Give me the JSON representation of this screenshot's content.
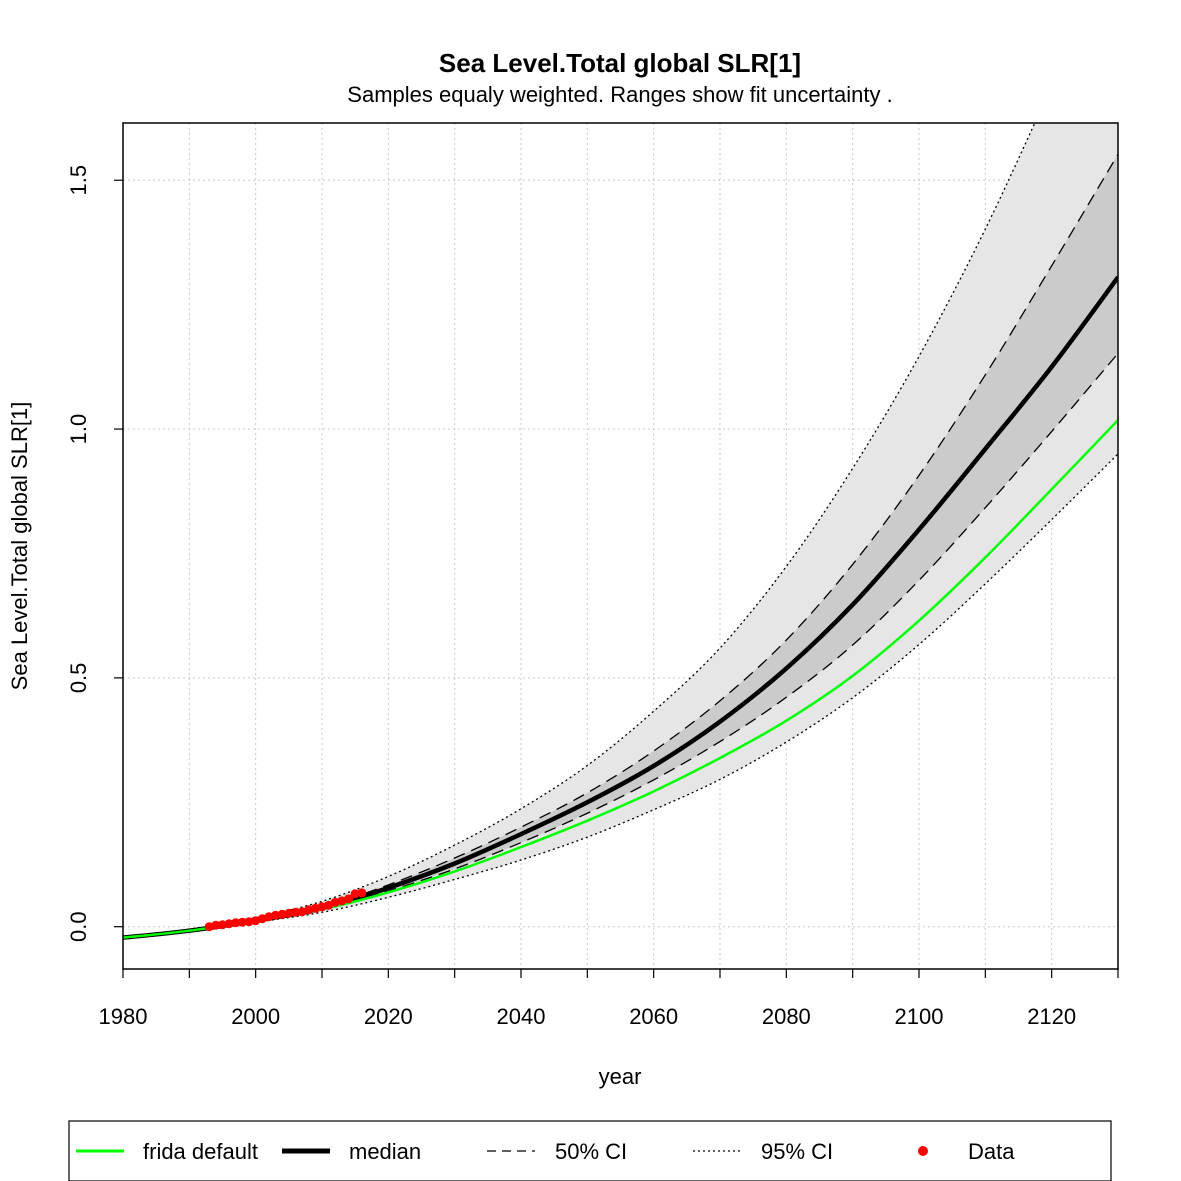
{
  "chart_data": {
    "type": "line",
    "title": "Sea Level.Total global SLR[1]",
    "subtitle": "Samples equaly weighted. Ranges show  fit uncertainty .",
    "xlabel": "year",
    "ylabel": "Sea Level.Total global SLR[1]",
    "xlim": [
      1980,
      2130
    ],
    "ylim": [
      -0.085,
      1.615
    ],
    "x_ticks": [
      1980,
      2000,
      2020,
      2040,
      2060,
      2080,
      2100,
      2120
    ],
    "x_minor_ticks": [
      1990,
      2010,
      2030,
      2050,
      2070,
      2090,
      2110,
      2130
    ],
    "y_ticks": [
      0.0,
      0.5,
      1.0,
      1.5
    ],
    "x_tick_labels": [
      "1980",
      "2000",
      "2020",
      "2040",
      "2060",
      "2080",
      "2100",
      "2120"
    ],
    "y_tick_labels": [
      "0.0",
      "0.5",
      "1.0",
      "1.5"
    ],
    "grid": true,
    "x": [
      1980,
      1990,
      2000,
      2010,
      2020,
      2030,
      2040,
      2050,
      2060,
      2070,
      2080,
      2090,
      2100,
      2110,
      2120,
      2130
    ],
    "series": [
      {
        "name": "frida default",
        "style": "line",
        "color": "#00ff00",
        "values": [
          -0.022,
          -0.008,
          0.012,
          0.035,
          0.069,
          0.111,
          0.16,
          0.213,
          0.272,
          0.339,
          0.414,
          0.504,
          0.615,
          0.742,
          0.879,
          1.018
        ]
      },
      {
        "name": "median",
        "style": "line",
        "color": "#000000",
        "values": [
          -0.022,
          -0.008,
          0.012,
          0.037,
          0.078,
          0.127,
          0.186,
          0.25,
          0.323,
          0.412,
          0.519,
          0.647,
          0.798,
          0.96,
          1.125,
          1.305
        ]
      },
      {
        "name": "50% CI",
        "style": "dashed",
        "color": "#000000",
        "lower": [
          -0.022,
          -0.008,
          0.012,
          0.035,
          0.072,
          0.116,
          0.169,
          0.228,
          0.295,
          0.372,
          0.461,
          0.566,
          0.696,
          0.842,
          0.995,
          1.152
        ],
        "upper": [
          -0.022,
          -0.007,
          0.013,
          0.04,
          0.084,
          0.138,
          0.2,
          0.269,
          0.353,
          0.454,
          0.576,
          0.728,
          0.907,
          1.109,
          1.328,
          1.552
        ]
      },
      {
        "name": "95% CI",
        "style": "dotted",
        "color": "#000000",
        "lower": [
          -0.022,
          -0.009,
          0.009,
          0.029,
          0.059,
          0.095,
          0.134,
          0.18,
          0.235,
          0.296,
          0.371,
          0.46,
          0.567,
          0.689,
          0.818,
          0.95
        ],
        "upper": [
          -0.02,
          -0.005,
          0.018,
          0.051,
          0.101,
          0.164,
          0.237,
          0.324,
          0.433,
          0.56,
          0.724,
          0.921,
          1.146,
          1.402,
          1.69,
          1.99
        ]
      },
      {
        "name": "Data",
        "style": "points",
        "color": "#ff0000",
        "x": [
          1993,
          1994,
          1995,
          1996,
          1997,
          1998,
          1999,
          2000,
          2001,
          2002,
          2003,
          2004,
          2005,
          2006,
          2007,
          2008,
          2009,
          2010,
          2011,
          2012,
          2013,
          2014,
          2015,
          2016
        ],
        "values": [
          0.0,
          0.003,
          0.004,
          0.006,
          0.008,
          0.009,
          0.01,
          0.012,
          0.016,
          0.02,
          0.023,
          0.025,
          0.027,
          0.029,
          0.03,
          0.034,
          0.037,
          0.04,
          0.043,
          0.049,
          0.052,
          0.056,
          0.066,
          0.068
        ]
      }
    ],
    "legend": {
      "placement": "bottom",
      "entries": [
        "frida default",
        "median",
        "50% CI",
        "95% CI",
        "Data"
      ]
    }
  }
}
